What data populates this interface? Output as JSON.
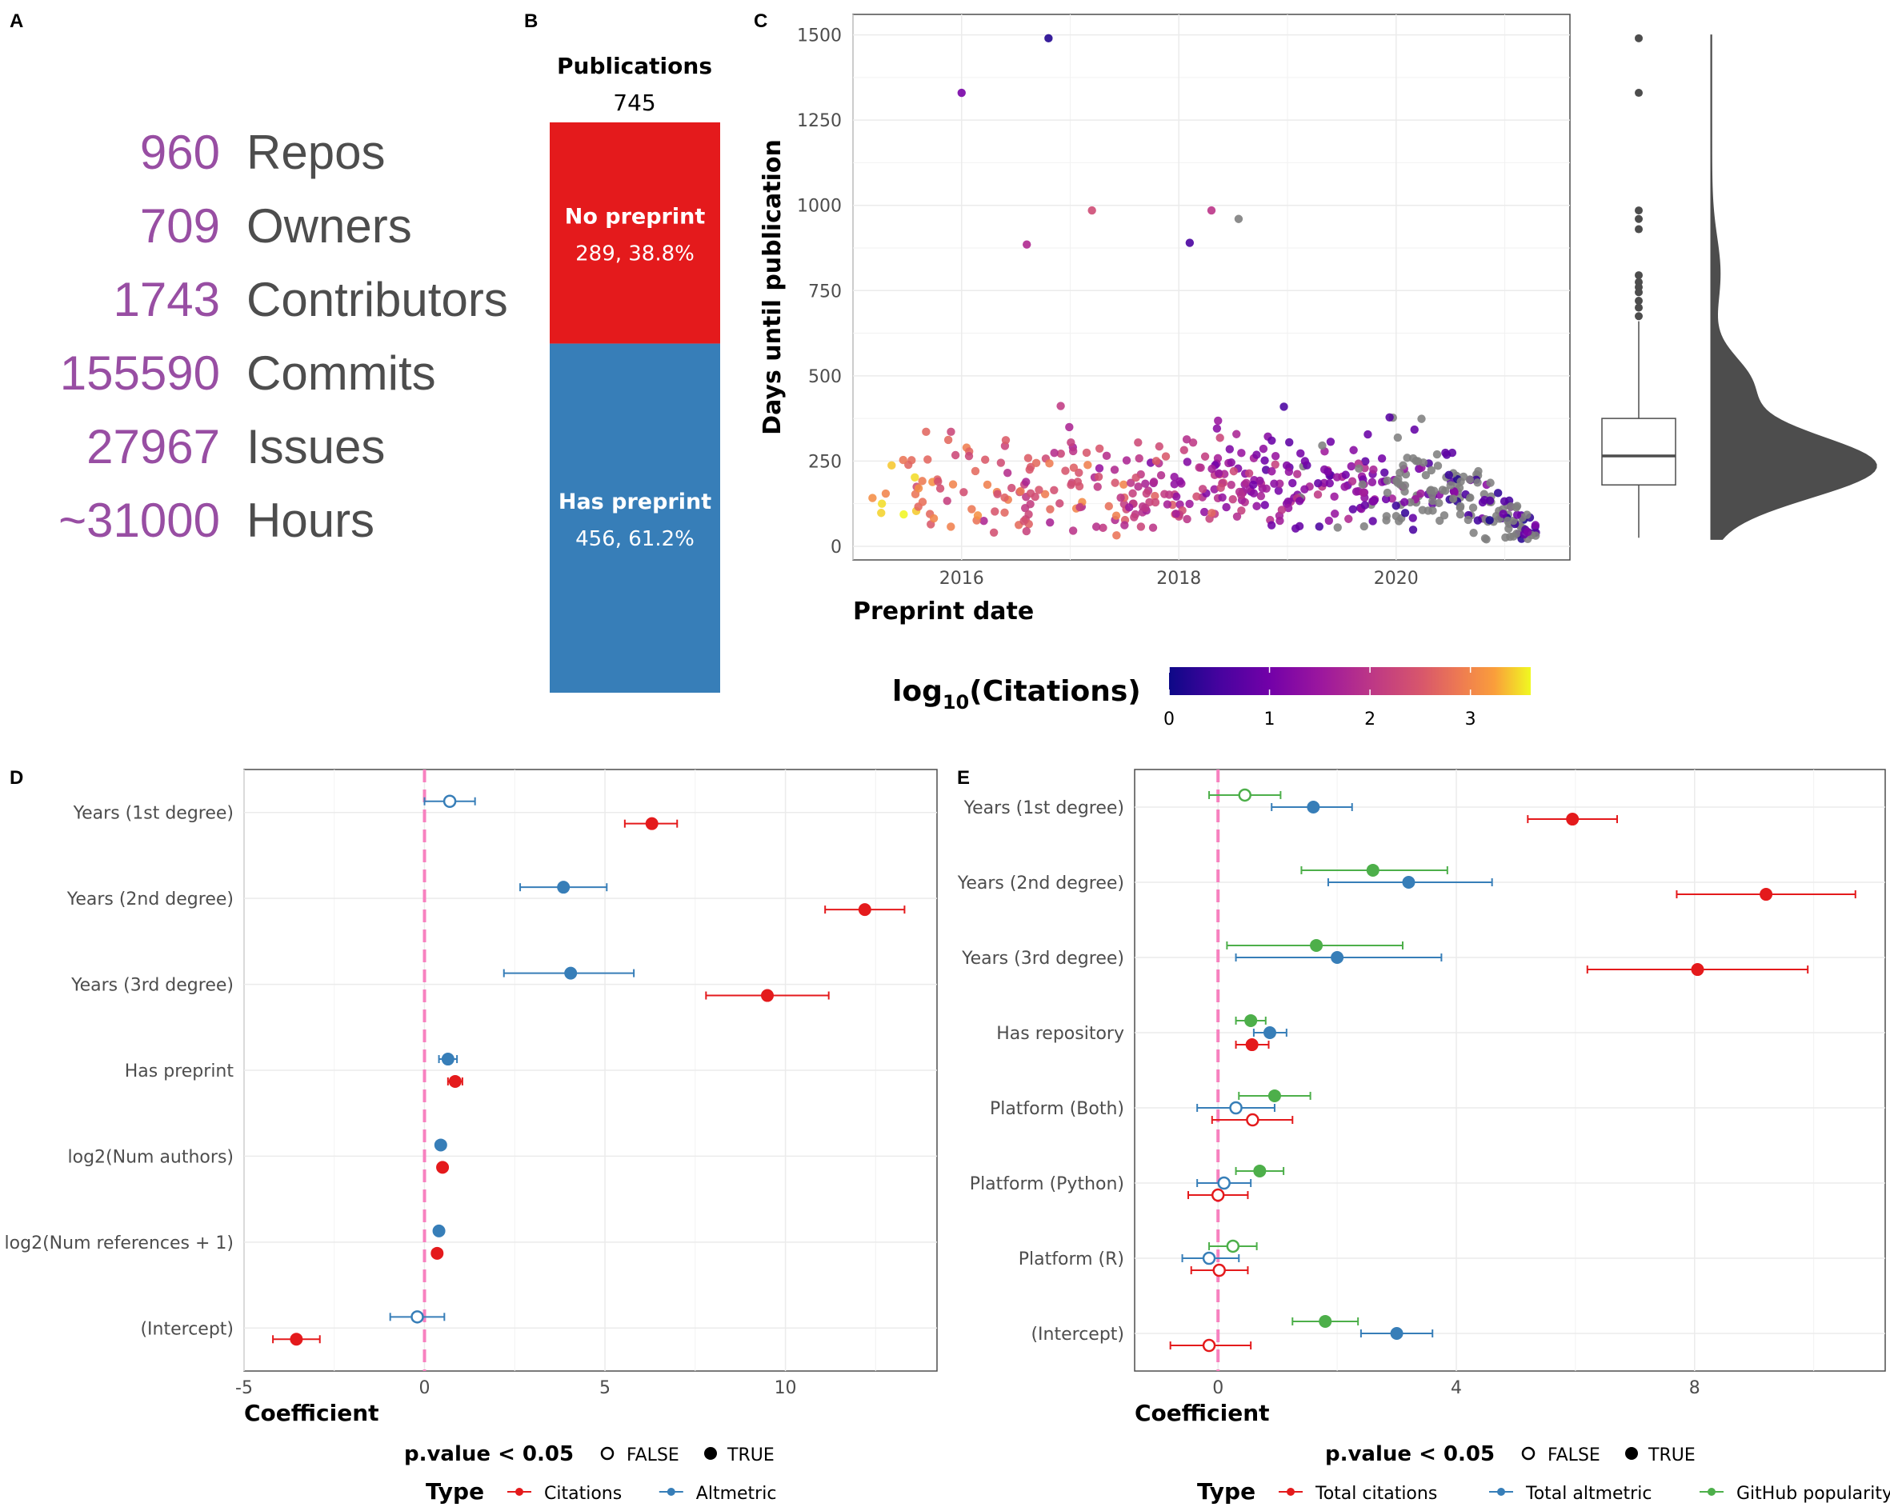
{
  "panels": {
    "a": "A",
    "b": "B",
    "c": "C",
    "d": "D",
    "e": "E"
  },
  "colors": {
    "purple": "#984EA3",
    "gray_text": "#4D4D4D",
    "red": "#E41A1C",
    "blue": "#377EB8",
    "green": "#4DAF4A",
    "pink": "#F781BF",
    "gray_point": "#808080",
    "dark": "#4D4D4D"
  },
  "stats": [
    {
      "value": "960",
      "label": "Repos"
    },
    {
      "value": "709",
      "label": "Owners"
    },
    {
      "value": "1743",
      "label": "Contributors"
    },
    {
      "value": "155590",
      "label": "Commits"
    },
    {
      "value": "27967",
      "label": "Issues"
    },
    {
      "value": "~31000",
      "label": "Hours"
    }
  ],
  "chart_data": [
    {
      "panel": "B",
      "type": "bar",
      "title": "Publications",
      "total": "745",
      "segments": [
        {
          "label": "No preprint",
          "text": "289, 38.8%",
          "value": 289,
          "color": "#E41A1C"
        },
        {
          "label": "Has preprint",
          "text": "456, 61.2%",
          "value": 456,
          "color": "#377EB8"
        }
      ]
    },
    {
      "panel": "C",
      "type": "scatter",
      "xlabel": "Preprint date",
      "ylabel": "Days until publication",
      "xlim": [
        2015.0,
        2021.6
      ],
      "ylim": [
        -40,
        1560
      ],
      "x_ticks": [
        "2016",
        "2018",
        "2020"
      ],
      "y_ticks": [
        "0",
        "250",
        "500",
        "750",
        "1000",
        "1250",
        "1500"
      ],
      "colorbar": {
        "title_main": "log",
        "title_sub": "10",
        "title_rest": "(Citations)",
        "ticks": [
          "0",
          "1",
          "2",
          "3"
        ],
        "range": [
          0,
          3.6
        ],
        "palette": "plasma"
      },
      "marginal": {
        "type": "boxplot+density",
        "q1": 180,
        "median": 265,
        "q3": 375,
        "whisker_low": 25,
        "whisker_high": 660,
        "outliers": [
          1490,
          1330,
          985,
          960,
          930,
          795,
          775,
          760,
          745,
          720,
          700,
          675
        ]
      },
      "points_note": "approx. 745 points; generated by seeded pseudo-random sample to mimic visual distribution"
    },
    {
      "panel": "D",
      "type": "scatter",
      "subtype": "coefficient-plot",
      "xlabel": "Coefficient",
      "xlim": [
        -5,
        14.2
      ],
      "x_ticks": [
        "-5",
        "0",
        "5",
        "10"
      ],
      "terms": [
        "Years (1st degree)",
        "Years (2nd degree)",
        "Years (3rd degree)",
        "Has preprint",
        "log2(Num authors)",
        "log2(Num references + 1)",
        "(Intercept)"
      ],
      "series": [
        {
          "name": "Citations",
          "color": "#E41A1C",
          "estimates": [
            6.3,
            12.2,
            9.5,
            0.85,
            0.5,
            0.35,
            -3.55
          ],
          "lower": [
            5.55,
            11.1,
            7.8,
            0.65,
            0.5,
            0.35,
            -4.2
          ],
          "upper": [
            7.0,
            13.3,
            11.2,
            1.05,
            0.5,
            0.35,
            -2.9
          ],
          "significant": [
            true,
            true,
            true,
            true,
            true,
            true,
            true
          ]
        },
        {
          "name": "Altmetric",
          "color": "#377EB8",
          "estimates": [
            0.7,
            3.85,
            4.05,
            0.65,
            0.45,
            0.4,
            -0.2
          ],
          "lower": [
            0.0,
            2.65,
            2.2,
            0.4,
            0.45,
            0.4,
            -0.95
          ],
          "upper": [
            1.4,
            5.05,
            5.8,
            0.9,
            0.45,
            0.4,
            0.55
          ],
          "significant": [
            false,
            true,
            true,
            true,
            true,
            true,
            false
          ]
        }
      ]
    },
    {
      "panel": "E",
      "type": "scatter",
      "subtype": "coefficient-plot",
      "xlabel": "Coefficient",
      "xlim": [
        -1.4,
        11.2
      ],
      "x_ticks": [
        "0",
        "4",
        "8"
      ],
      "terms": [
        "Years (1st degree)",
        "Years (2nd degree)",
        "Years (3rd degree)",
        "Has repository",
        "Platform (Both)",
        "Platform (Python)",
        "Platform (R)",
        "(Intercept)"
      ],
      "series": [
        {
          "name": "Total citations",
          "color": "#E41A1C",
          "estimates": [
            5.95,
            9.2,
            8.05,
            0.57,
            0.58,
            0.0,
            0.02,
            -0.15
          ],
          "lower": [
            5.2,
            7.7,
            6.2,
            0.3,
            -0.1,
            -0.5,
            -0.45,
            -0.8
          ],
          "upper": [
            6.7,
            10.7,
            9.9,
            0.85,
            1.25,
            0.5,
            0.5,
            0.55
          ],
          "significant": [
            true,
            true,
            true,
            true,
            false,
            false,
            false,
            false
          ]
        },
        {
          "name": "Total altmetric",
          "color": "#377EB8",
          "estimates": [
            1.6,
            3.2,
            2.0,
            0.87,
            0.3,
            0.1,
            -0.15,
            3.0
          ],
          "lower": [
            0.9,
            1.85,
            0.3,
            0.6,
            -0.35,
            -0.35,
            -0.6,
            2.4
          ],
          "upper": [
            2.25,
            4.6,
            3.75,
            1.15,
            0.95,
            0.55,
            0.35,
            3.6
          ],
          "significant": [
            true,
            true,
            true,
            true,
            false,
            false,
            false,
            true
          ]
        },
        {
          "name": "GitHub popularity",
          "color": "#4DAF4A",
          "estimates": [
            0.45,
            2.6,
            1.65,
            0.55,
            0.95,
            0.7,
            0.25,
            1.8
          ],
          "lower": [
            -0.15,
            1.4,
            0.15,
            0.3,
            0.35,
            0.3,
            -0.15,
            1.25
          ],
          "upper": [
            1.05,
            3.85,
            3.1,
            0.8,
            1.55,
            1.1,
            0.65,
            2.35
          ],
          "significant": [
            false,
            true,
            true,
            true,
            true,
            true,
            false,
            true
          ]
        }
      ]
    }
  ],
  "legend": {
    "pvalue_title": "p.value < 0.05",
    "false_label": "FALSE",
    "true_label": "TRUE",
    "type_title": "Type",
    "d_types": [
      "Citations",
      "Altmetric"
    ],
    "e_types": [
      "Total citations",
      "Total altmetric",
      "GitHub popularity"
    ]
  }
}
